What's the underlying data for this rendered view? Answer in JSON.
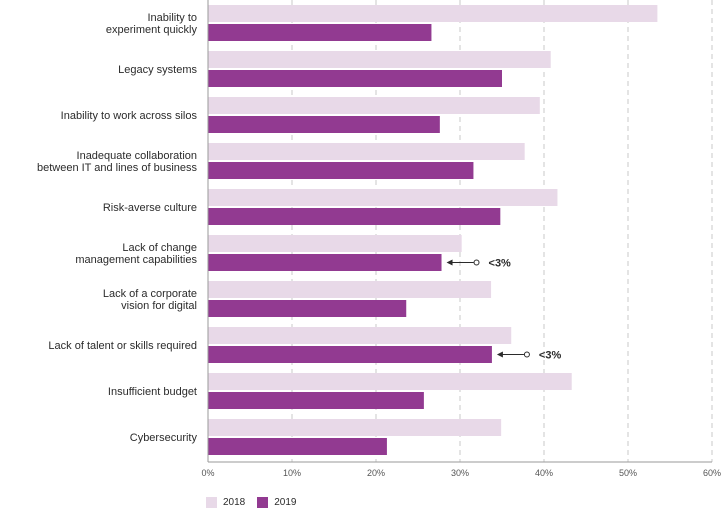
{
  "chart_data": {
    "type": "bar",
    "orientation": "horizontal",
    "categories": [
      [
        "Inability to",
        "experiment quickly"
      ],
      [
        "Legacy systems"
      ],
      [
        "Inability to work across silos"
      ],
      [
        "Inadequate collaboration",
        "between IT and lines of business"
      ],
      [
        "Risk-averse culture"
      ],
      [
        "Lack of change",
        "management capabilities"
      ],
      [
        "Lack of a corporate",
        "vision for digital"
      ],
      [
        "Lack of talent or skills required"
      ],
      [
        "Insufficient budget"
      ],
      [
        "Cybersecurity"
      ]
    ],
    "series": [
      {
        "name": "2018",
        "color": "#e8d9e8",
        "values": [
          53.5,
          40.8,
          39.5,
          37.7,
          41.6,
          30.2,
          33.7,
          36.1,
          43.3,
          34.9
        ]
      },
      {
        "name": "2019",
        "color": "#923a91",
        "values": [
          26.6,
          35.0,
          27.6,
          31.6,
          34.8,
          27.8,
          23.6,
          33.8,
          25.7,
          21.3
        ]
      }
    ],
    "xlim": [
      0,
      60
    ],
    "xticks": [
      0,
      10,
      20,
      30,
      40,
      50,
      60
    ],
    "tick_format": "%",
    "gridlines": "dashed vertical",
    "annotations": [
      {
        "category_index": 5,
        "text": "<3%"
      },
      {
        "category_index": 7,
        "text": "<3%"
      }
    ],
    "legend_position": "bottom-left"
  }
}
